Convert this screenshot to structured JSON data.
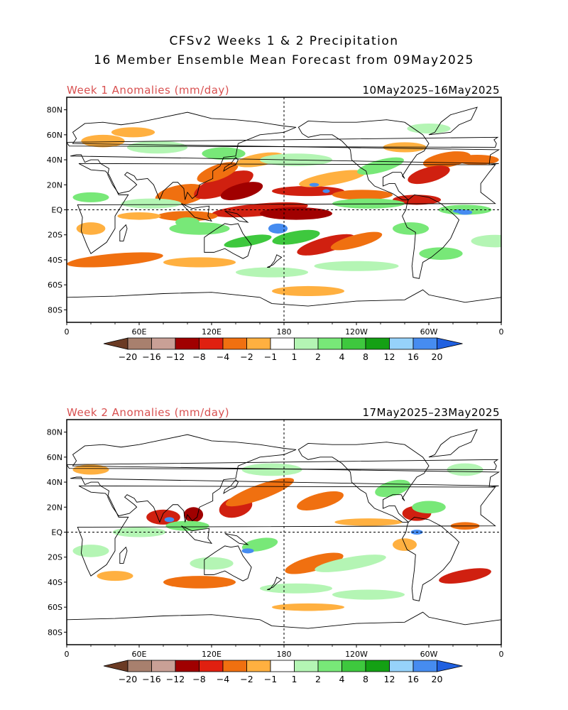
{
  "header": {
    "title_line1": "CFSv2 Weeks 1 & 2 Precipitation",
    "title_line2": "16 Member Ensemble Mean Forecast from 09May2025"
  },
  "panels": [
    {
      "label": "Week 1 Anomalies (mm/day)",
      "date_range": "10May2025–16May2025",
      "lat_labels": [
        "80N",
        "60N",
        "40N",
        "20N",
        "EQ",
        "20S",
        "40S",
        "60S",
        "80S"
      ],
      "lon_labels": [
        "0",
        "60E",
        "120E",
        "180",
        "120W",
        "60W",
        "0"
      ]
    },
    {
      "label": "Week 2 Anomalies (mm/day)",
      "date_range": "17May2025–23May2025",
      "lat_labels": [
        "80N",
        "60N",
        "40N",
        "20N",
        "EQ",
        "20S",
        "40S",
        "60S",
        "80S"
      ],
      "lon_labels": [
        "0",
        "60E",
        "120E",
        "180",
        "120W",
        "60W",
        "0"
      ]
    }
  ],
  "colorbar": {
    "labels": [
      "−20",
      "−16",
      "−12",
      "−8",
      "−4",
      "−2",
      "−1",
      "1",
      "2",
      "4",
      "8",
      "12",
      "16",
      "20"
    ],
    "colors": [
      "#6b3b24",
      "#a8806e",
      "#c9a096",
      "#a00000",
      "#e02010",
      "#f07010",
      "#ffb040",
      "#ffffff",
      "#b4f5b4",
      "#78e878",
      "#3ec83e",
      "#14a014",
      "#96d2fa",
      "#468cf0",
      "#2060e0"
    ]
  },
  "anomaly_colors": {
    "dry_light": "#ffb040",
    "dry_mid": "#f07010",
    "dry_strong": "#d02010",
    "dry_extreme": "#a00000",
    "wet_light": "#b4f5b4",
    "wet_mid": "#78e878",
    "wet_strong": "#3ec83e",
    "wet_extreme": "#468cf0"
  }
}
